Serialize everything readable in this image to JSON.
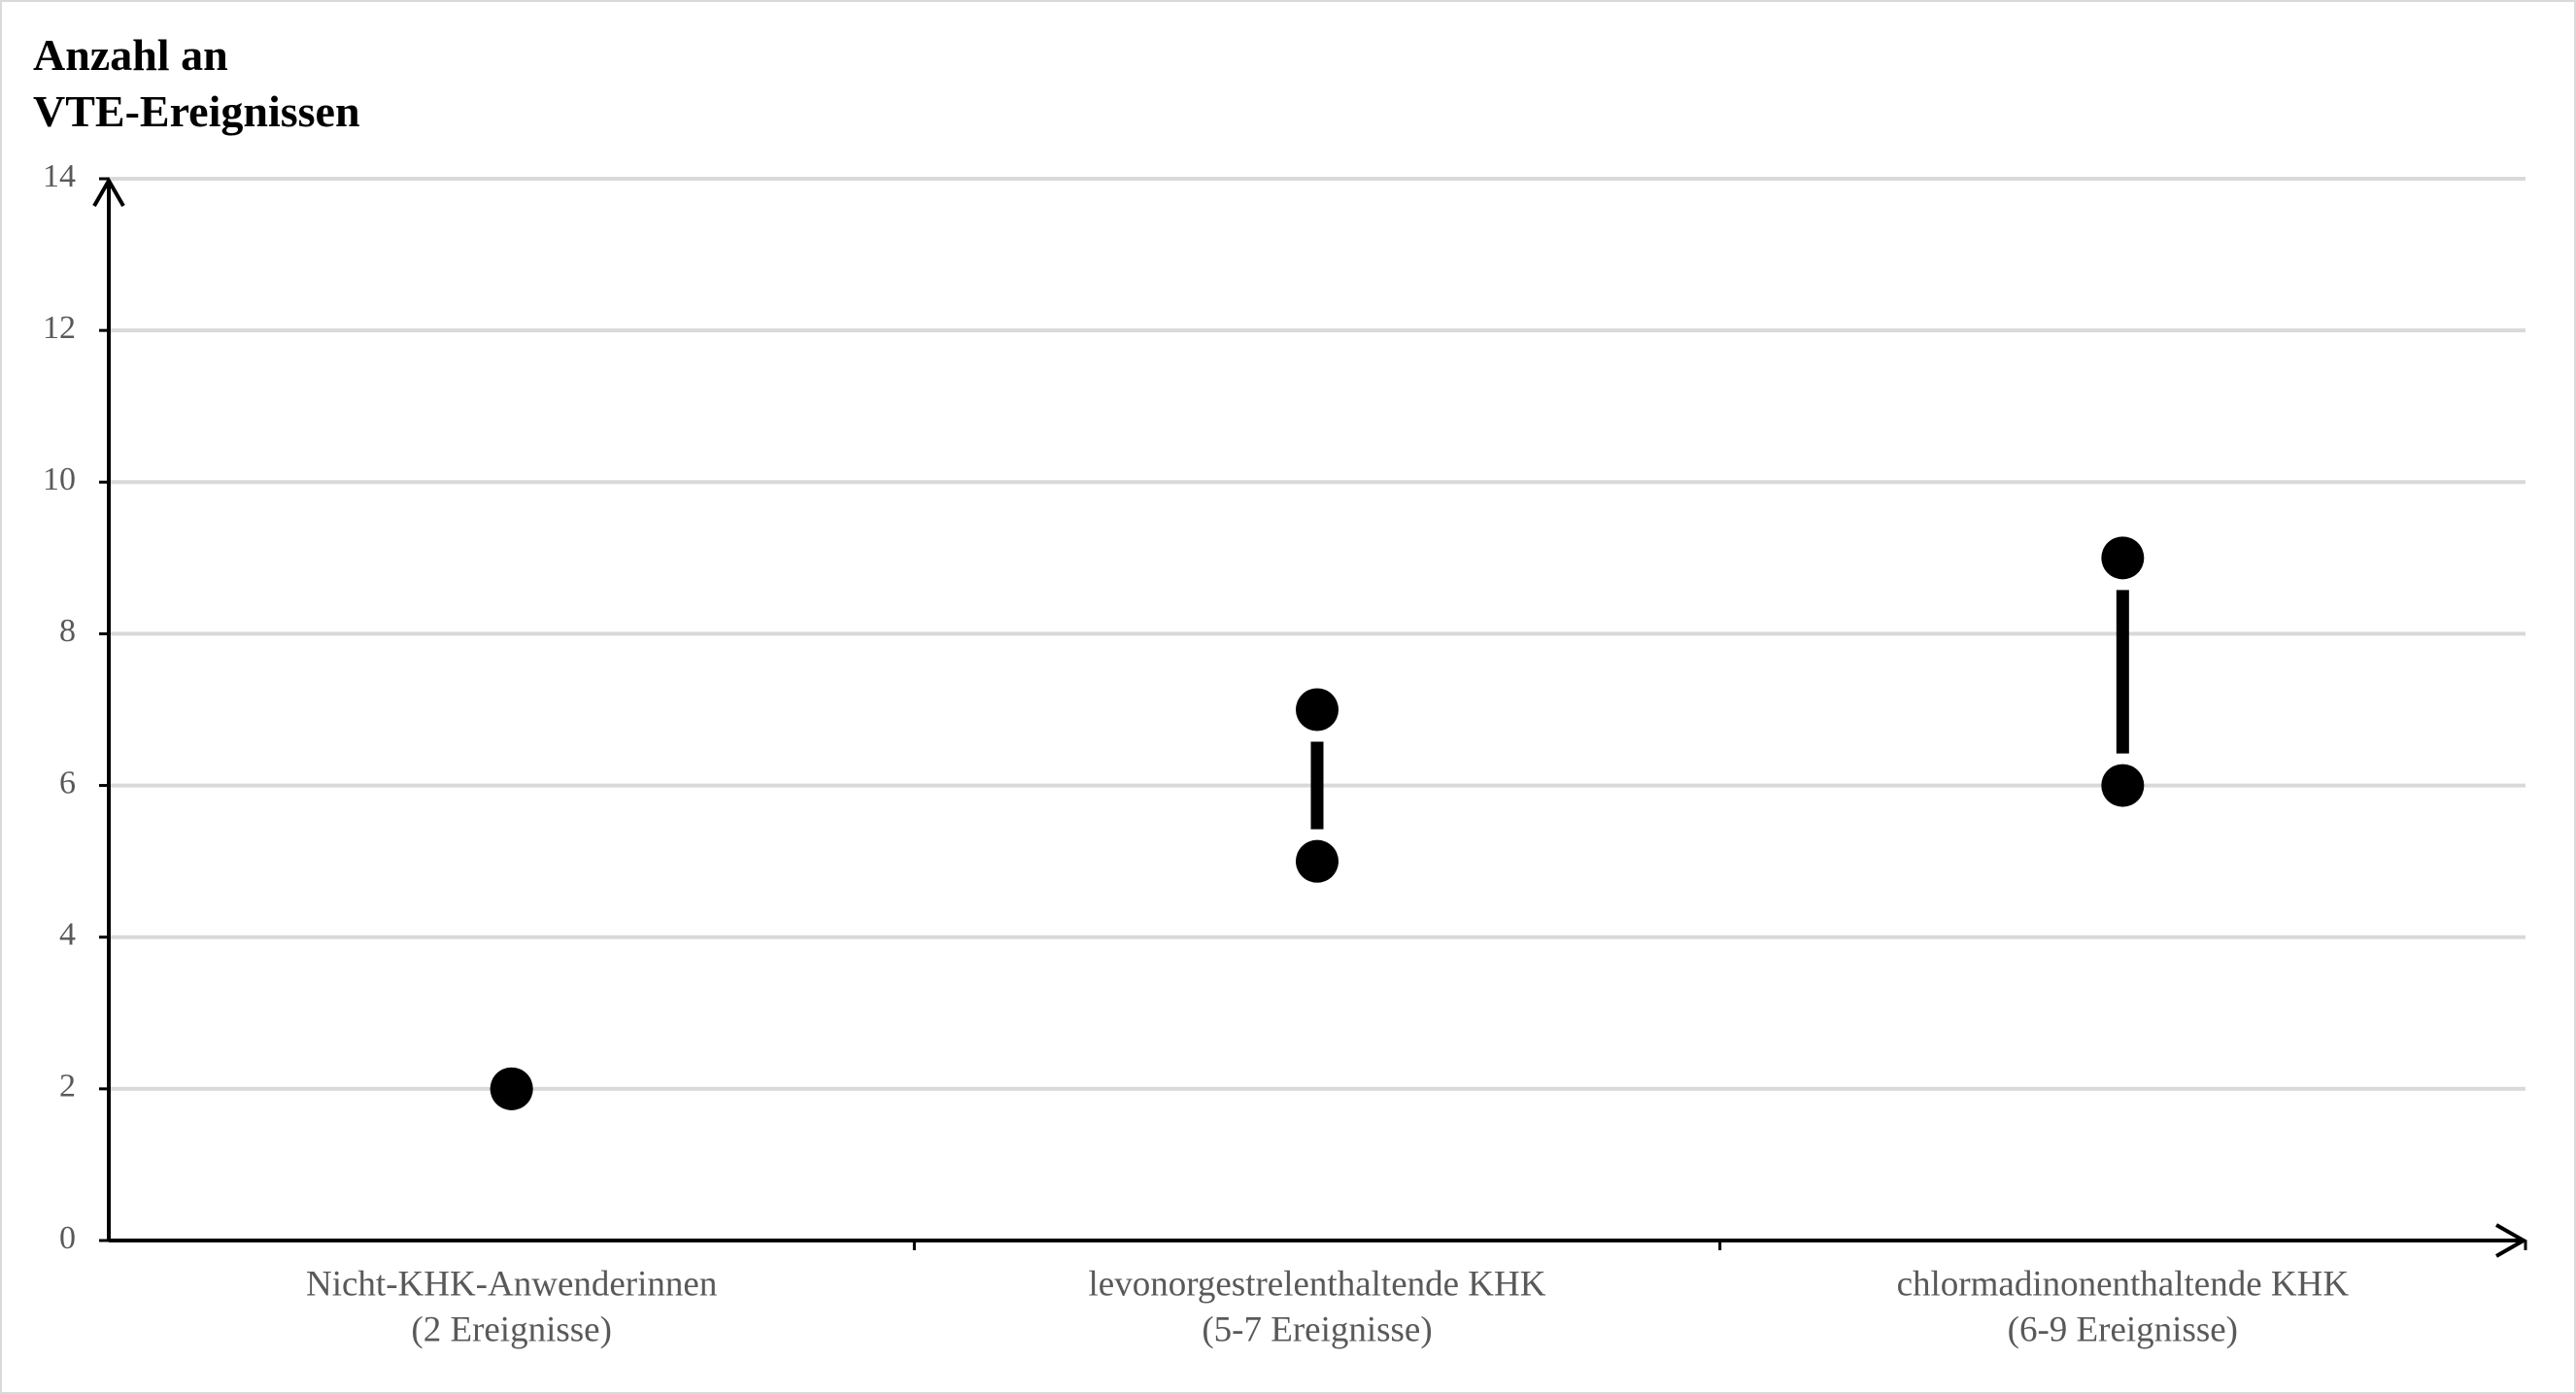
{
  "chart_data": {
    "type": "range",
    "ylabel": [
      "Anzahl an",
      "VTE-Ereignissen"
    ],
    "categories": [
      [
        "Nicht-KHK-Anwenderinnen",
        "(2 Ereignisse)"
      ],
      [
        "levonorgestrelenthaltende KHK",
        "(5-7 Ereignisse)"
      ],
      [
        "chlormadinonenthaltende KHK",
        "(6-9 Ereignisse)"
      ]
    ],
    "low": [
      2,
      5,
      6
    ],
    "high": [
      2,
      7,
      9
    ],
    "color": "#000000",
    "ylim": [
      0,
      14
    ],
    "yticks": [
      0,
      2,
      4,
      6,
      8,
      10,
      12,
      14
    ],
    "grid": true
  }
}
